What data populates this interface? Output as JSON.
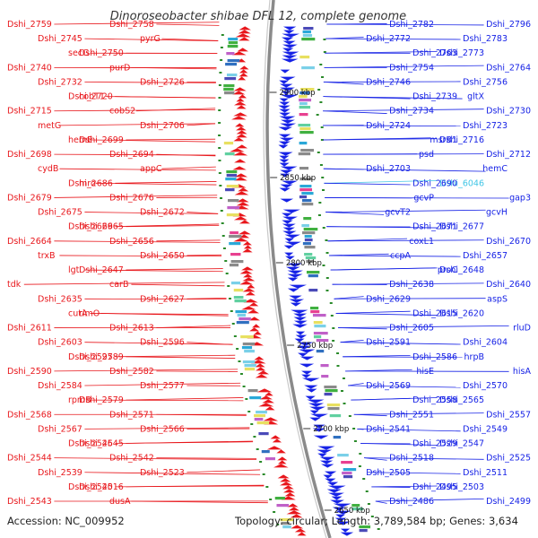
{
  "title": "Dinoroseobacter shibae DFL 12, complete genome",
  "footer": {
    "accession": "Accession: NC_009952",
    "topology": "Topology: circular; Length: 3,789,584 bp; Genes: 3,634"
  },
  "colors": {
    "forward_strand": "#e8161b",
    "reverse_strand": "#1622e6",
    "highlight": "#41c6e6",
    "backbone": "#8a8a8a",
    "tick": "#2a8a2a"
  },
  "scale_labels": [
    "2900 kbp",
    "2850 kbp",
    "2800 kbp",
    "2750 kbp",
    "2700 kbp",
    "2650 kbp"
  ],
  "left_labels": [
    "Dshi_2759",
    "Dshi_2758",
    "Dshi_2745",
    "pyrG",
    "secG",
    "Dshi_2750",
    "Dshi_2740",
    "purD",
    "Dshi_2732",
    "Dshi_2726",
    "Dshi_2720",
    "cobT1",
    "Dshi_2715",
    "cobS2",
    "metG",
    "Dshi_2706",
    "hemE",
    "Dshi_2699",
    "Dshi_2698",
    "Dshi_2694",
    "cydB",
    "appC",
    "Dshi_2686",
    "mro",
    "Dshi_2679",
    "Dshi_2676",
    "Dshi_2675",
    "Dshi_2672",
    "Dshi_2669",
    "Dshi_2665",
    "Dshi_2664",
    "Dshi_2656",
    "trxB",
    "Dshi_2650",
    "lgt",
    "Dshi_2647",
    "tdk",
    "carB",
    "Dshi_2635",
    "Dshi_2627",
    "cutA",
    "rimO",
    "Dshi_2611",
    "Dshi_2613",
    "Dshi_2603",
    "Dshi_2596",
    "Dshi_2597",
    "Dshi_2589",
    "Dshi_2590",
    "Dshi_2582",
    "Dshi_2584",
    "Dshi_2577",
    "rpmB",
    "Dshi_2579",
    "Dshi_2568",
    "Dshi_2571",
    "Dshi_2567",
    "Dshi_2566",
    "Dshi_2546",
    "Dshi_2545",
    "Dshi_2544",
    "Dshi_2542",
    "Dshi_2539",
    "Dshi_2523",
    "Dshi_2540",
    "Dshi_2516",
    "Dshi_2543",
    "dusA"
  ],
  "right_labels": [
    "Dshi_2796",
    "Dshi_2782",
    "Dshi_2783",
    "Dshi_2772",
    "Dshi_2773",
    "Dshi_2763",
    "Dshi_2764",
    "Dshi_2754",
    "Dshi_2756",
    "Dshi_2746",
    "gltX",
    "Dshi_2739",
    "Dshi_2730",
    "Dshi_2734",
    "Dshi_2723",
    "Dshi_2724",
    "Dshi_2716",
    "msrB1",
    "Dshi_2712",
    "psd",
    "hemC",
    "Dshi_2703",
    "Dshi_6046",
    "Dshi_2690",
    "gap3",
    "gcvP",
    "gcvH",
    "gcvT2",
    "Dshi_2677",
    "Dshi_2671",
    "Dshi_2670",
    "coxL1",
    "Dshi_2657",
    "ccpA",
    "Dshi_2648",
    "proC",
    "Dshi_2640",
    "Dshi_2638",
    "aspS",
    "Dshi_2629",
    "Dshi_2620",
    "Dshi_2615",
    "rluD",
    "Dshi_2605",
    "Dshi_2604",
    "Dshi_2591",
    "hrpB",
    "Dshi_2586",
    "hisA",
    "hisE",
    "Dshi_2570",
    "Dshi_2569",
    "Dshi_2565",
    "Dshi_2558",
    "Dshi_2557",
    "Dshi_2551",
    "Dshi_2549",
    "Dshi_2541",
    "Dshi_2547",
    "Dshi_2529",
    "Dshi_2525",
    "Dshi_2518",
    "Dshi_2511",
    "Dshi_2505",
    "Dshi_2503",
    "Dshi_2495",
    "Dshi_2499",
    "Dshi_2486"
  ]
}
